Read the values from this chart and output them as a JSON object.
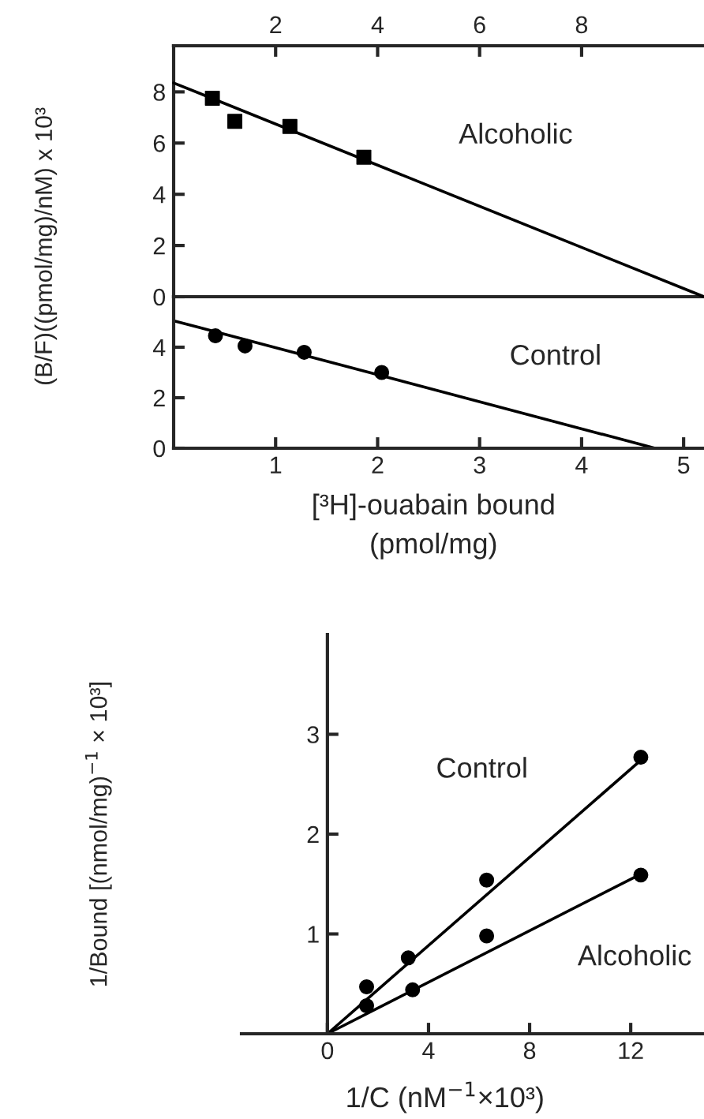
{
  "chart_data": [
    {
      "type": "scatter",
      "ylabel": "(B/F)((pmol/mg)/nM) x 10³",
      "xlim": [
        0,
        5.2
      ],
      "ylim": [
        0,
        9.8
      ],
      "yticks": [
        0,
        2,
        4,
        6,
        8
      ],
      "x2lim": [
        0,
        10.4
      ],
      "x2ticks": [
        2,
        4,
        6,
        8
      ],
      "tick_labels": "y",
      "grid": false,
      "legend": false,
      "annotations": [
        "Alcoholic"
      ],
      "series": [
        {
          "axis": "x2",
          "marker": "square",
          "color": "#000000",
          "x": [
            0.76,
            1.2,
            2.28,
            3.73
          ],
          "values": [
            7.75,
            6.85,
            6.65,
            5.45
          ]
        },
        {
          "type": "line",
          "axis": "x2",
          "color": "#000000",
          "x": [
            0,
            10.4
          ],
          "values": [
            8.35,
            0
          ]
        }
      ]
    },
    {
      "type": "scatter",
      "xlabel": "[³H]-ouabain bound\n(pmol/mg)",
      "xlim": [
        0,
        5.2
      ],
      "xticks": [
        1,
        2,
        3,
        4,
        5
      ],
      "ylim": [
        0,
        6
      ],
      "yticks": [
        0,
        2,
        4
      ],
      "grid": false,
      "legend": false,
      "annotations": [
        "Control"
      ],
      "series": [
        {
          "marker": "circle",
          "color": "#000000",
          "x": [
            0.41,
            0.7,
            1.28,
            2.04
          ],
          "values": [
            4.45,
            4.05,
            3.8,
            3.0
          ]
        },
        {
          "type": "line",
          "color": "#000000",
          "x": [
            0,
            4.72
          ],
          "values": [
            5.05,
            0
          ]
        }
      ]
    },
    {
      "type": "scatter",
      "xlabel": "1/C (nM$^{−1}$×10³)",
      "ylabel": "1/Bound [(nmol/mg)$^{−1}$ × 10³]",
      "xlim": [
        -3.4,
        14.9
      ],
      "xticks": [
        0,
        4,
        8,
        12
      ],
      "ylim": [
        0,
        4.0
      ],
      "yticks": [
        1,
        2,
        3
      ],
      "grid": false,
      "legend": false,
      "annotations": [
        "Control",
        "Alcoholic"
      ],
      "series": [
        {
          "marker": "circle",
          "color": "#000000",
          "x": [
            1.55,
            3.2,
            6.3,
            12.4
          ],
          "values": [
            0.47,
            0.76,
            1.54,
            2.77
          ]
        },
        {
          "type": "line",
          "color": "#000000",
          "x": [
            0,
            12.4
          ],
          "values": [
            0,
            2.74
          ]
        },
        {
          "marker": "circle",
          "color": "#000000",
          "x": [
            1.55,
            3.37,
            6.3,
            12.4
          ],
          "values": [
            0.28,
            0.44,
            0.98,
            1.59
          ]
        },
        {
          "type": "line",
          "color": "#000000",
          "x": [
            0,
            12.4
          ],
          "values": [
            0,
            1.6
          ]
        }
      ]
    }
  ]
}
